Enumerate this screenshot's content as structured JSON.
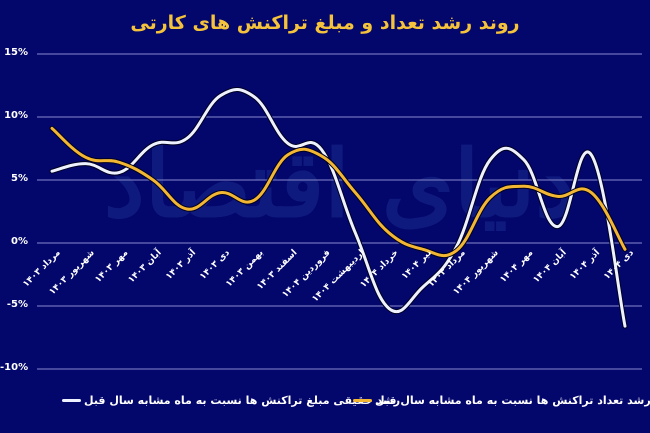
{
  "title": "روند رشد تعداد و مبلغ تراکنش های کارتی",
  "watermark": "دنیای اقتصاد",
  "colors": {
    "background": "#03066b",
    "title": "#f5c33b",
    "gridline": "#6d71b9",
    "series_amount": "#eef1ff",
    "series_count": "#f2b632"
  },
  "legend": {
    "amount_label": "رشد حقیقی مبلغ تراکنش ها نسبت به ماه مشابه سال قبل",
    "count_label": "رشد تعداد تراکنش ها نسبت به ماه مشابه سال قبل"
  },
  "y_ticks": [
    "15%",
    "10%",
    "5%",
    "0%",
    "-5%",
    "-10%"
  ],
  "chart_data": {
    "type": "line",
    "title": "روند رشد تعداد و مبلغ تراکنش های کارتی",
    "xlabel": "",
    "ylabel": "",
    "ylim": [
      -10,
      15
    ],
    "yticks": [
      15,
      10,
      5,
      0,
      -5,
      -10
    ],
    "grid": true,
    "legend_position": "bottom",
    "categories": [
      "مرداد ۱۴۰۳",
      "شهریور ۱۴۰۳",
      "مهر ۱۴۰۳",
      "آبان ۱۴۰۳",
      "آذر ۱۴۰۳",
      "دی ۱۴۰۳",
      "بهمن ۱۴۰۳",
      "اسفند ۱۴۰۳",
      "فروردین ۱۴۰۴",
      "اردیبهشت ۱۴۰۴",
      "خرداد ۱۴۰۴",
      "تیر ۱۴۰۴",
      "مرداد ۱۴۰۴",
      "شهریور ۱۴۰۴",
      "مهر ۱۴۰۴",
      "آبان ۱۴۰۴",
      "آذر ۱۴۰۴",
      "دی ۱۴۰۴"
    ],
    "series": [
      {
        "name": "رشد حقیقی مبلغ تراکنش ها نسبت به ماه مشابه سال قبل",
        "color": "#eef1ff",
        "values": [
          5.7,
          6.3,
          5.6,
          7.8,
          8.3,
          11.7,
          11.6,
          7.9,
          7.4,
          0.8,
          -5.2,
          -3.5,
          -0.3,
          6.6,
          6.6,
          1.3,
          7.0,
          -6.6
        ]
      },
      {
        "name": "رشد تعداد تراکنش ها نسبت به ماه مشابه سال قبل",
        "color": "#f2b632",
        "values": [
          9.1,
          6.8,
          6.4,
          5.0,
          2.7,
          4.0,
          3.4,
          7.0,
          6.9,
          4.0,
          0.8,
          -0.5,
          -0.6,
          3.6,
          4.5,
          3.7,
          4.0,
          -0.5
        ]
      }
    ]
  }
}
